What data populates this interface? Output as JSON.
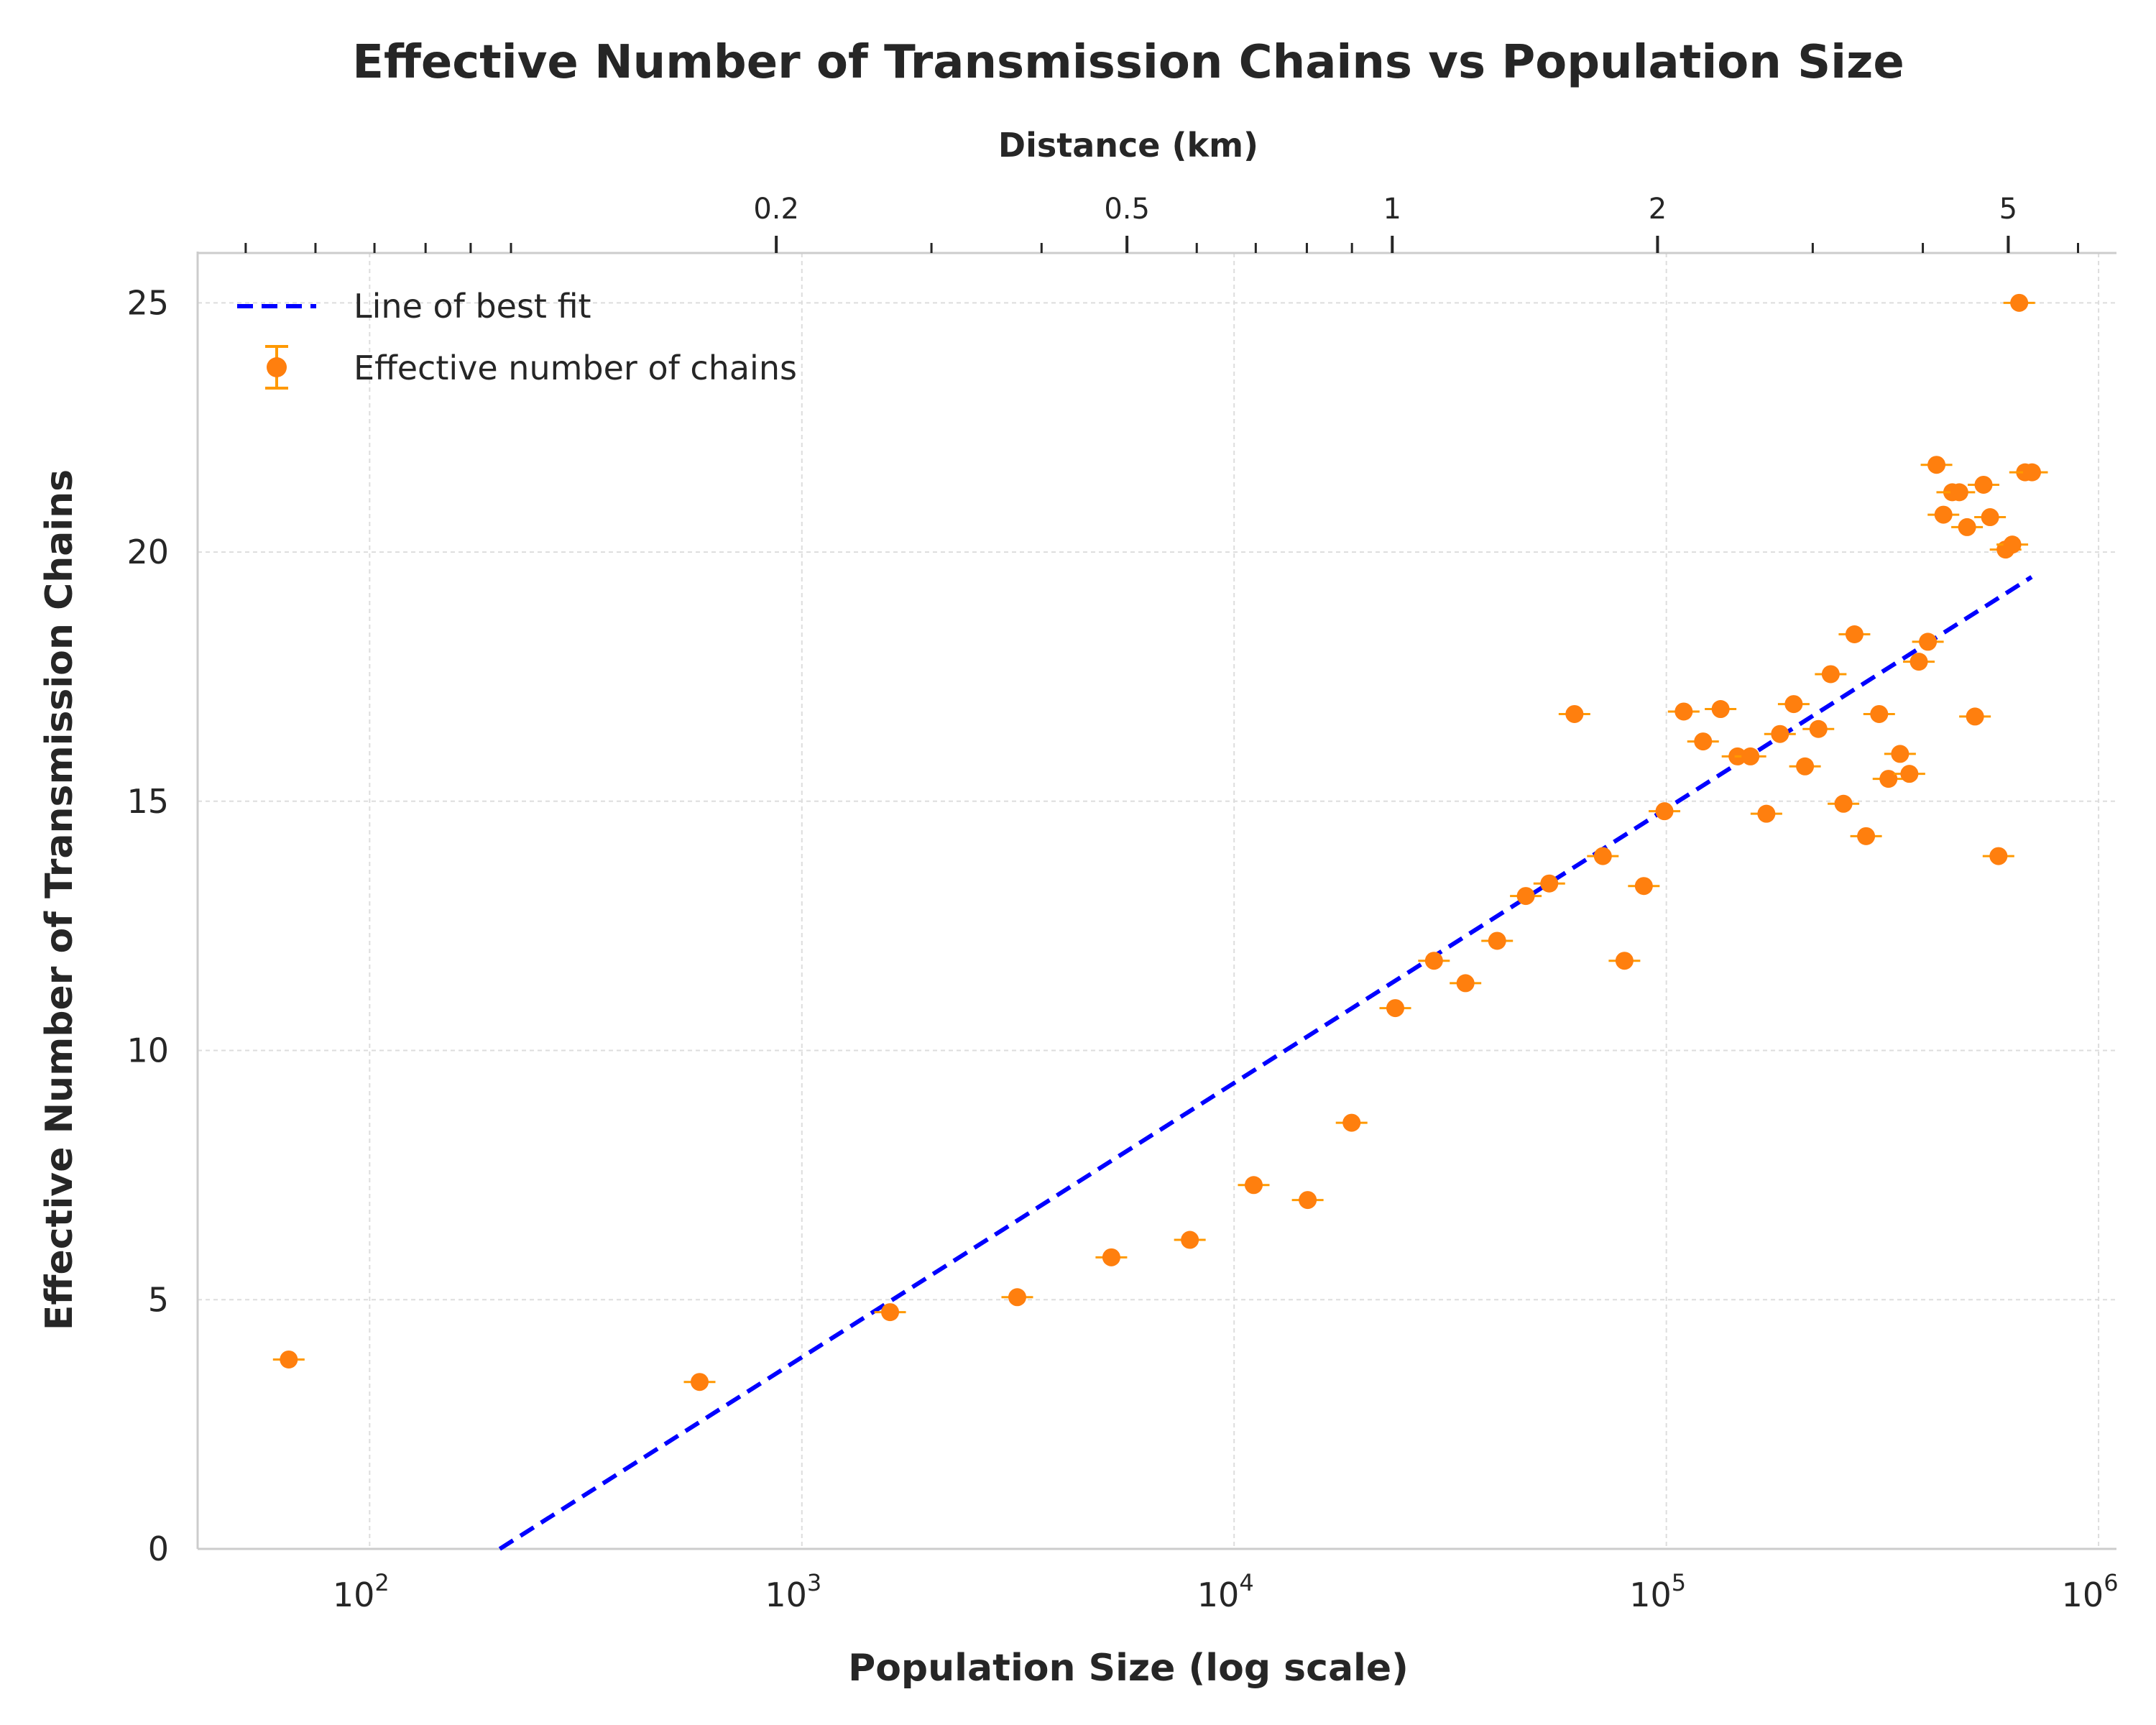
{
  "chart_data": {
    "type": "scatter",
    "title": "Effective Number of Transmission Chains vs Population Size",
    "xlabel": "Population Size (log scale)",
    "ylabel": "Effective Number of Transmission Chains",
    "xscale": "log",
    "xlim": [
      40,
      1100000
    ],
    "ylim": [
      0,
      26
    ],
    "x_ticks": [
      100,
      1000,
      10000,
      100000,
      1000000
    ],
    "x_tick_labels": [
      {
        "base": "10",
        "exp": "2"
      },
      {
        "base": "10",
        "exp": "3"
      },
      {
        "base": "10",
        "exp": "4"
      },
      {
        "base": "10",
        "exp": "5"
      },
      {
        "base": "10",
        "exp": "6"
      }
    ],
    "y_ticks": [
      0,
      5,
      10,
      15,
      20,
      25
    ],
    "y_tick_labels": [
      "0",
      "5",
      "10",
      "15",
      "20",
      "25"
    ],
    "grid": true,
    "legend_position": "upper-left",
    "secondary_x_axis": {
      "label": "Distance (km)",
      "position": "top",
      "scale": "log",
      "xlim": [
        0.0441,
        6.634
      ],
      "ticks": [
        0.2,
        0.5,
        1,
        2,
        5
      ],
      "tick_labels": [
        "0.2",
        "0.5",
        "1",
        "2",
        "5"
      ],
      "minor_ticks": [
        0.05,
        0.06,
        0.07,
        0.08,
        0.09,
        0.1,
        0.3,
        0.4,
        0.6,
        0.7,
        0.8,
        0.9,
        3,
        4,
        6
      ]
    },
    "series": [
      {
        "name": "Line of best fit",
        "kind": "line",
        "style": "dashed",
        "color": "#0000ff",
        "x": [
          200,
          700000
        ],
        "y": [
          0,
          19.5
        ]
      },
      {
        "name": "Effective number of chains",
        "kind": "scatter",
        "error_bars": true,
        "color": "#ff7f0e",
        "ecolor": "#ff9900",
        "x": [
          65,
          580,
          1600,
          3150,
          5200,
          7900,
          11100,
          14800,
          18700,
          23600,
          29000,
          34300,
          40600,
          47300,
          53600,
          61300,
          71300,
          80000,
          88700,
          99000,
          109700,
          121600,
          133500,
          146100,
          156500,
          170400,
          183200,
          197100,
          209300,
          224800,
          240000,
          256900,
          272400,
          289800,
          310700,
          326500,
          347300,
          365000,
          383900,
          402800,
          421700,
          437600,
          458600,
          476200,
          496300,
          517700,
          541800,
          561000,
          586700,
          609300,
          631600,
          655200,
          676000,
          701500
        ],
        "y": [
          3.8,
          3.35,
          4.75,
          5.05,
          5.85,
          6.2,
          7.3,
          7.0,
          8.55,
          10.85,
          11.8,
          11.35,
          12.2,
          13.1,
          13.35,
          16.75,
          13.9,
          11.8,
          13.3,
          14.8,
          16.8,
          16.2,
          16.85,
          15.9,
          15.9,
          14.75,
          16.35,
          16.95,
          15.7,
          16.45,
          17.55,
          14.95,
          18.35,
          14.3,
          16.75,
          15.45,
          15.95,
          15.55,
          17.8,
          18.2,
          21.75,
          20.75,
          21.2,
          21.2,
          20.5,
          16.7,
          21.35,
          20.7,
          13.9,
          20.05,
          20.15,
          25.0,
          21.6,
          21.6
        ]
      }
    ]
  }
}
